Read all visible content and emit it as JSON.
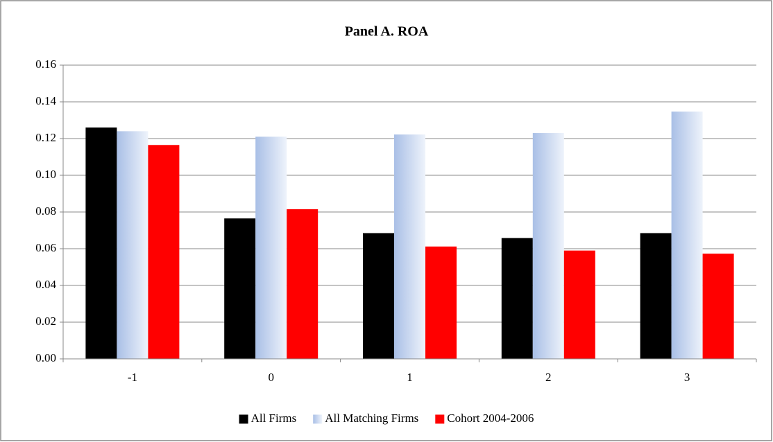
{
  "chart_data": {
    "type": "bar",
    "title": "Panel A. ROA",
    "categories": [
      "-1",
      "0",
      "1",
      "2",
      "3"
    ],
    "series": [
      {
        "name": "All Firms",
        "color": "#000000",
        "values": [
          0.126,
          0.0765,
          0.0685,
          0.0658,
          0.0685
        ]
      },
      {
        "name": "All Matching Firms",
        "color": "#a9bfe6",
        "values": [
          0.124,
          0.121,
          0.1222,
          0.123,
          0.1347
        ]
      },
      {
        "name": "Cohort 2004-2006",
        "color": "#ff0000",
        "values": [
          0.1165,
          0.0815,
          0.0612,
          0.059,
          0.0573
        ]
      }
    ],
    "ylim": [
      0,
      0.16
    ],
    "yticks": [
      {
        "value": 0,
        "label": "0.00"
      },
      0.02,
      0.04,
      0.06,
      0.08,
      {
        "value": 0.1,
        "label": "0.10"
      },
      0.12,
      0.14,
      0.16
    ],
    "grid": true,
    "legend": "bottom"
  }
}
